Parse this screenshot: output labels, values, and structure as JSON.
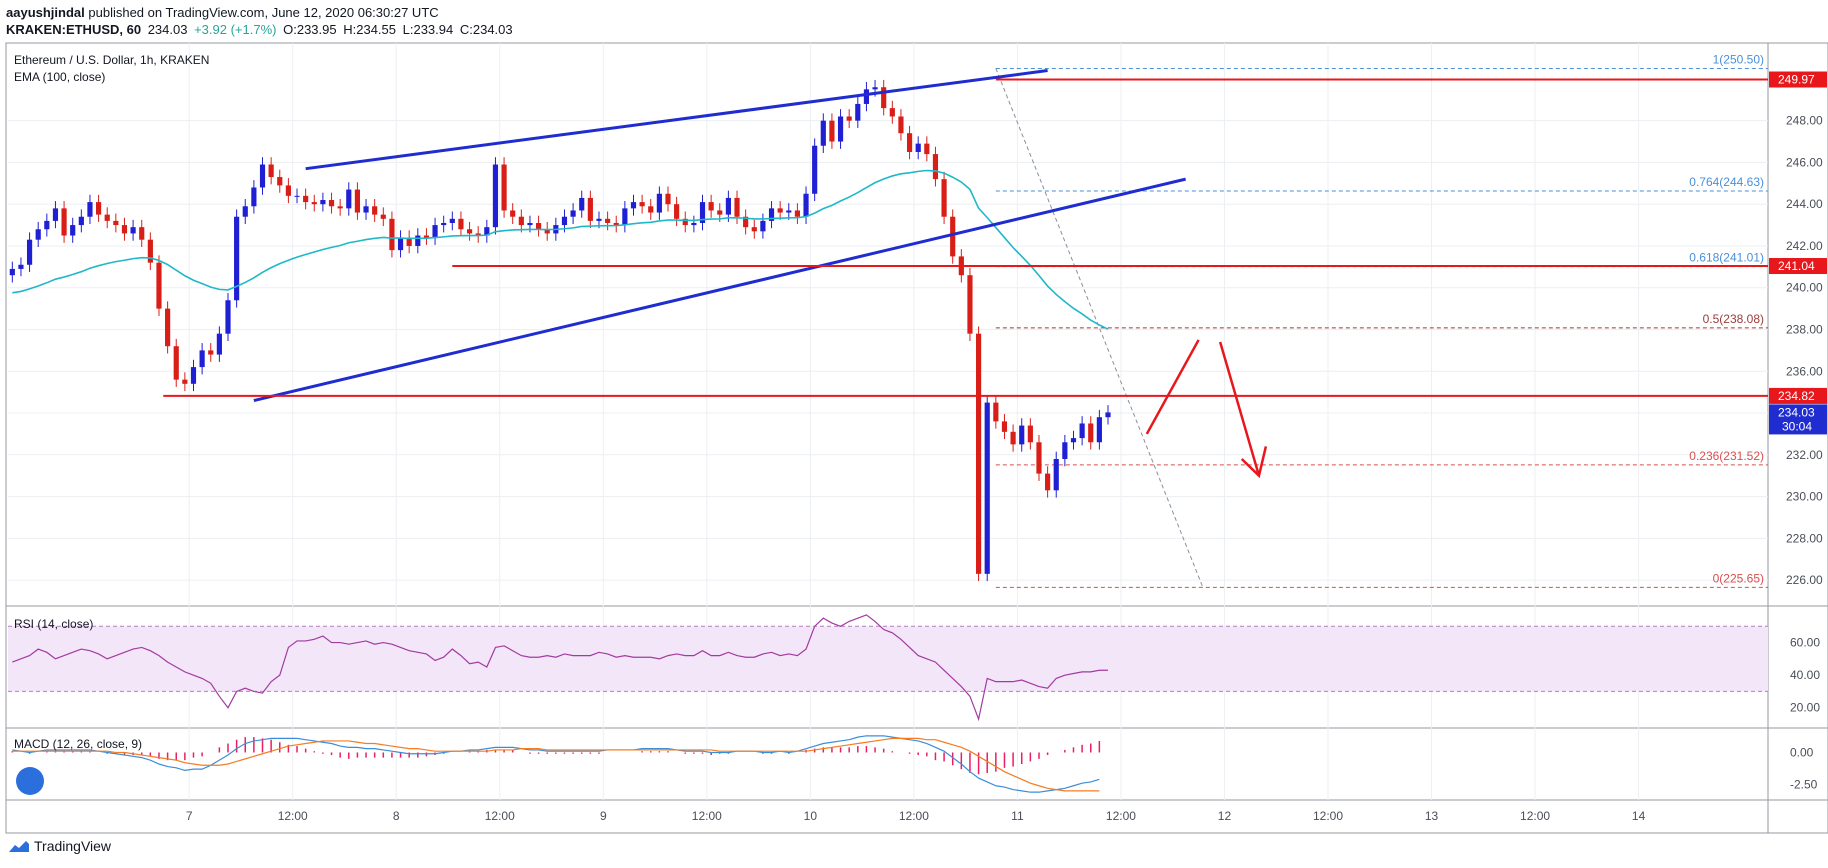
{
  "header": {
    "author": "aayushjindal",
    "published_text": "published on TradingView.com, June 12, 2020 06:30:27 UTC",
    "symbol": "KRAKEN:ETHUSD, 60",
    "last": "234.03",
    "change": "+3.92 (+1.7%)",
    "open": "O:233.95",
    "high": "H:234.55",
    "low": "L:233.94",
    "close": "C:234.03"
  },
  "chart_title": "Ethereum / U.S. Dollar, 1h, KRAKEN",
  "ema_label": "EMA (100, close)",
  "rsi_label": "RSI (14, close)",
  "macd_label": "MACD (12, 26, close, 9)",
  "footer_brand": "TradingView",
  "colors": {
    "bull": "#1f1fd4",
    "bear": "#d91e18",
    "ema": "#1fb8c9",
    "trendline": "#1f2ccf",
    "level": "#e8171c",
    "rsi": "#a23ba0",
    "macd": "#3c8dd9",
    "signal": "#f57c20",
    "hist": "#e91e63"
  },
  "chart_data": {
    "type": "candlestick",
    "price_axis": {
      "min": 225,
      "max": 251,
      "ticks": [
        "226.00",
        "228.00",
        "230.00",
        "232.00",
        "234.00",
        "236.00",
        "238.00",
        "240.00",
        "242.00",
        "244.00",
        "246.00",
        "248.00"
      ]
    },
    "time_axis": {
      "start_hour": 0,
      "end_hour": 204,
      "labels": [
        {
          "t": 21,
          "text": "7"
        },
        {
          "t": 33,
          "text": "12:00"
        },
        {
          "t": 45,
          "text": "8"
        },
        {
          "t": 57,
          "text": "12:00"
        },
        {
          "t": 69,
          "text": "9"
        },
        {
          "t": 81,
          "text": "12:00"
        },
        {
          "t": 93,
          "text": "10"
        },
        {
          "t": 105,
          "text": "12:00"
        },
        {
          "t": 117,
          "text": "11"
        },
        {
          "t": 129,
          "text": "12:00"
        },
        {
          "t": 141,
          "text": "12"
        },
        {
          "t": 153,
          "text": "12:00"
        },
        {
          "t": 165,
          "text": "13"
        },
        {
          "t": 177,
          "text": "12:00"
        },
        {
          "t": 189,
          "text": "14"
        }
      ]
    },
    "candles_close": [
      240.9,
      241.1,
      242.3,
      242.8,
      243.2,
      243.8,
      242.5,
      243.0,
      243.4,
      244.1,
      243.5,
      243.2,
      243.0,
      242.6,
      242.9,
      242.3,
      241.2,
      239.0,
      237.2,
      235.6,
      235.4,
      236.2,
      237.0,
      236.8,
      237.8,
      239.4,
      243.4,
      243.9,
      244.8,
      245.9,
      245.3,
      244.9,
      244.4,
      244.4,
      244.1,
      244.0,
      244.2,
      243.9,
      243.8,
      244.7,
      243.6,
      243.9,
      243.5,
      243.3,
      241.8,
      242.4,
      242.0,
      242.5,
      242.4,
      243.0,
      243.1,
      243.3,
      242.8,
      242.6,
      242.5,
      242.9,
      245.9,
      243.7,
      243.4,
      243.0,
      243.1,
      242.8,
      242.6,
      243.0,
      243.4,
      243.7,
      244.3,
      243.2,
      243.3,
      243.1,
      243.0,
      243.8,
      244.1,
      243.9,
      243.6,
      244.5,
      244.0,
      243.3,
      243.0,
      243.1,
      244.1,
      243.7,
      243.5,
      244.3,
      243.4,
      242.9,
      242.7,
      243.2,
      243.8,
      243.6,
      243.7,
      243.4,
      244.5,
      246.8,
      248.0,
      247.0,
      248.2,
      248.0,
      248.8,
      249.5,
      249.6,
      248.6,
      248.2,
      247.4,
      246.5,
      246.9,
      246.4,
      245.2,
      243.4,
      241.5,
      240.6,
      237.8,
      226.3,
      234.5,
      233.6,
      233.1,
      232.5,
      233.4,
      232.6,
      231.1,
      230.3,
      231.8,
      232.6,
      232.8,
      233.5,
      232.6,
      233.8,
      234.03
    ],
    "ema_label_value": 241.04,
    "horizontal_levels": [
      {
        "value": 249.97,
        "label": "249.97"
      },
      {
        "value": 241.04,
        "label": "241.04"
      },
      {
        "value": 234.82,
        "label": "234.82"
      }
    ],
    "current_price": {
      "value": 234.03,
      "label": "234.03",
      "countdown": "30:04"
    },
    "fibonacci": {
      "high": 250.5,
      "low": 225.65,
      "levels": [
        {
          "ratio": "1",
          "value": 250.5,
          "label": "1(250.50)"
        },
        {
          "ratio": "0.764",
          "value": 244.63,
          "label": "0.764(244.63)"
        },
        {
          "ratio": "0.618",
          "value": 241.01,
          "label": "0.618(241.01)"
        },
        {
          "ratio": "0.5",
          "value": 238.08,
          "label": "0.5(238.08)"
        },
        {
          "ratio": "0.236",
          "value": 231.52,
          "label": "0.236(231.52)"
        },
        {
          "ratio": "0",
          "value": 225.65,
          "label": "0(225.65)"
        }
      ]
    },
    "rsi": {
      "min": 10,
      "max": 80,
      "ticks": [
        "20.00",
        "40.00",
        "60.00"
      ],
      "bands": [
        30,
        70
      ],
      "values": [
        48,
        50,
        52,
        56,
        54,
        50,
        52,
        54,
        56,
        55,
        53,
        50,
        52,
        54,
        56,
        57,
        55,
        52,
        48,
        45,
        42,
        40,
        38,
        35,
        27,
        20,
        30,
        32,
        30,
        29,
        36,
        40,
        57,
        61,
        61,
        62,
        64,
        60,
        60,
        59,
        60,
        61,
        59,
        60,
        59,
        57,
        55,
        54,
        53,
        49,
        51,
        56,
        52,
        47,
        48,
        45,
        57,
        58,
        55,
        52,
        51,
        51,
        52,
        51,
        53,
        52,
        52,
        52,
        54,
        53,
        51,
        52,
        51,
        51,
        51,
        50,
        52,
        53,
        52,
        52,
        55,
        52,
        52,
        54,
        52,
        51,
        51,
        53,
        54,
        52,
        53,
        52,
        56,
        70,
        75,
        72,
        70,
        73,
        75,
        77,
        73,
        68,
        66,
        62,
        57,
        52,
        50,
        48,
        43,
        38,
        33,
        27,
        13,
        38,
        36,
        36,
        36,
        37,
        35,
        33,
        32,
        38,
        40,
        41,
        42,
        42,
        43,
        43
      ]
    },
    "macd": {
      "min": -3.4,
      "max": 1.6,
      "ticks": [
        "0.00",
        "-2.50"
      ],
      "macd": [
        0.2,
        0.1,
        0.0,
        0.1,
        0.2,
        0.2,
        0.2,
        0.2,
        0.2,
        0.2,
        0.1,
        0.0,
        -0.1,
        -0.2,
        -0.3,
        -0.4,
        -0.6,
        -0.9,
        -1.1,
        -1.2,
        -1.4,
        -1.3,
        -1.3,
        -1.0,
        -0.6,
        -0.2,
        0.3,
        0.7,
        0.9,
        1.0,
        1.1,
        1.1,
        1.1,
        1.1,
        1.0,
        0.9,
        0.8,
        0.7,
        0.5,
        0.4,
        0.4,
        0.3,
        0.3,
        0.2,
        0.1,
        0.0,
        -0.1,
        -0.1,
        -0.1,
        -0.1,
        0.0,
        0.1,
        0.1,
        0.2,
        0.2,
        0.3,
        0.4,
        0.4,
        0.4,
        0.3,
        0.2,
        0.2,
        0.1,
        0.1,
        0.1,
        0.1,
        0.1,
        0.1,
        0.1,
        0.2,
        0.2,
        0.2,
        0.2,
        0.3,
        0.3,
        0.3,
        0.3,
        0.2,
        0.1,
        0.1,
        0.1,
        0.0,
        0.0,
        0.0,
        0.1,
        0.1,
        0.1,
        0.0,
        0.0,
        0.1,
        0.0,
        0.1,
        0.3,
        0.5,
        0.7,
        0.8,
        0.9,
        1.0,
        1.2,
        1.3,
        1.3,
        1.3,
        1.2,
        1.1,
        1.0,
        0.9,
        0.7,
        0.4,
        0.1,
        -0.4,
        -0.9,
        -1.5,
        -2.0,
        -2.3,
        -2.6,
        -2.7,
        -2.9,
        -3.0,
        -3.1,
        -3.1,
        -3.0,
        -2.9,
        -2.8,
        -2.6,
        -2.4,
        -2.3,
        -2.1
      ],
      "signal": [
        0.1,
        0.1,
        0.1,
        0.1,
        0.1,
        0.1,
        0.1,
        0.1,
        0.1,
        0.1,
        0.1,
        0.1,
        0.0,
        0.0,
        -0.1,
        -0.2,
        -0.3,
        -0.4,
        -0.5,
        -0.6,
        -0.8,
        -0.9,
        -1.0,
        -1.0,
        -1.0,
        -0.9,
        -0.7,
        -0.5,
        -0.3,
        -0.1,
        0.1,
        0.3,
        0.5,
        0.6,
        0.7,
        0.8,
        0.9,
        0.9,
        0.9,
        0.9,
        0.8,
        0.7,
        0.7,
        0.6,
        0.5,
        0.4,
        0.3,
        0.3,
        0.2,
        0.1,
        0.1,
        0.1,
        0.1,
        0.1,
        0.1,
        0.1,
        0.2,
        0.2,
        0.2,
        0.3,
        0.3,
        0.3,
        0.2,
        0.2,
        0.2,
        0.2,
        0.2,
        0.2,
        0.2,
        0.2,
        0.2,
        0.2,
        0.2,
        0.2,
        0.2,
        0.2,
        0.2,
        0.2,
        0.2,
        0.2,
        0.2,
        0.2,
        0.1,
        0.1,
        0.1,
        0.1,
        0.1,
        0.1,
        0.1,
        0.1,
        0.1,
        0.1,
        0.1,
        0.2,
        0.3,
        0.4,
        0.5,
        0.6,
        0.7,
        0.8,
        0.9,
        1.0,
        1.1,
        1.1,
        1.1,
        1.1,
        1.0,
        1.0,
        0.8,
        0.6,
        0.4,
        0.1,
        -0.3,
        -0.7,
        -1.1,
        -1.5,
        -1.8,
        -2.1,
        -2.4,
        -2.6,
        -2.8,
        -2.9,
        -3.0,
        -3.0,
        -3.0,
        -3.0,
        -3.0
      ]
    },
    "drawings": {
      "upper_trendline": {
        "from": {
          "t": 34.5,
          "price": 245.7
        },
        "to": {
          "t": 120.5,
          "price": 250.4
        }
      },
      "lower_trendline": {
        "from": {
          "t": 28.5,
          "price": 234.6
        },
        "to": {
          "t": 136.5,
          "price": 245.2
        }
      },
      "support_line_241": {
        "from_t": 51.5,
        "to_t": 204,
        "price": 241.04
      },
      "support_line_234": {
        "from_t": 18.0,
        "to_t": 204,
        "price": 234.82
      },
      "resistance_line_250": {
        "from_t": 114.5,
        "to_t": 204,
        "price": 249.97
      }
    }
  }
}
